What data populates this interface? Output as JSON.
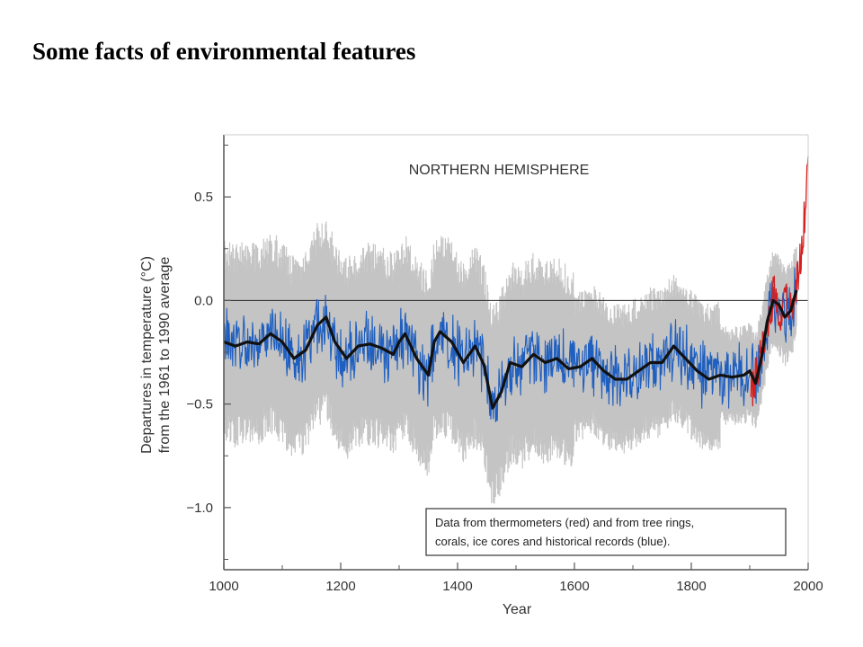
{
  "slide": {
    "title": "Some facts of environmental features"
  },
  "chart_data": {
    "type": "line",
    "title": "NORTHERN HEMISPHERE",
    "xlabel": "Year",
    "ylabel_lines": [
      "Departures in temperature (°C)",
      "from the 1961 to 1990 average"
    ],
    "xlim": [
      1000,
      2000
    ],
    "ylim": [
      -1.3,
      0.8
    ],
    "xticks": [
      1000,
      1200,
      1400,
      1600,
      1800,
      2000
    ],
    "xtick_labels": [
      "1000",
      "1200",
      "1400",
      "1600",
      "1800",
      "2000"
    ],
    "yticks": [
      0.5,
      0.0,
      -0.5,
      -1.0
    ],
    "ytick_labels": [
      "0.5",
      "0.0",
      "−0.5",
      "−1.0"
    ],
    "zero_line": 0.0,
    "legend": {
      "lines": [
        "Data from thermometers (red) and from tree rings,",
        "corals, ice cores and historical records (blue)."
      ],
      "placement": "bottom-right"
    },
    "colors": {
      "uncertainty": "#c4c4c4",
      "proxy": "#1f5fc0",
      "thermometer": "#d42020",
      "smoothed": "#111111"
    },
    "series": [
      {
        "role": "smoothed",
        "x": [
          1000,
          1020,
          1040,
          1060,
          1080,
          1100,
          1120,
          1140,
          1160,
          1175,
          1190,
          1210,
          1230,
          1250,
          1270,
          1290,
          1300,
          1310,
          1330,
          1350,
          1360,
          1370,
          1390,
          1410,
          1430,
          1445,
          1460,
          1475,
          1490,
          1510,
          1530,
          1550,
          1570,
          1590,
          1610,
          1630,
          1650,
          1670,
          1690,
          1710,
          1730,
          1750,
          1770,
          1790,
          1810,
          1830,
          1850,
          1870,
          1890,
          1900,
          1910,
          1920,
          1930,
          1940,
          1950,
          1960,
          1970,
          1980
        ],
        "y": [
          -0.2,
          -0.22,
          -0.2,
          -0.21,
          -0.16,
          -0.2,
          -0.28,
          -0.24,
          -0.12,
          -0.08,
          -0.2,
          -0.28,
          -0.22,
          -0.21,
          -0.23,
          -0.26,
          -0.2,
          -0.16,
          -0.28,
          -0.36,
          -0.2,
          -0.15,
          -0.2,
          -0.3,
          -0.22,
          -0.31,
          -0.52,
          -0.44,
          -0.3,
          -0.32,
          -0.26,
          -0.3,
          -0.28,
          -0.33,
          -0.32,
          -0.28,
          -0.34,
          -0.38,
          -0.38,
          -0.34,
          -0.3,
          -0.3,
          -0.22,
          -0.28,
          -0.34,
          -0.38,
          -0.36,
          -0.37,
          -0.36,
          -0.34,
          -0.4,
          -0.28,
          -0.1,
          0.0,
          -0.02,
          -0.08,
          -0.05,
          0.05
        ]
      },
      {
        "role": "thermometer",
        "x": [
          1902,
          1912,
          1922,
          1932,
          1942,
          1952,
          1962,
          1972,
          1982,
          1992,
          2000
        ],
        "y": [
          -0.45,
          -0.35,
          -0.25,
          -0.1,
          0.05,
          -0.05,
          0.0,
          -0.05,
          0.1,
          0.35,
          0.65
        ]
      }
    ]
  }
}
